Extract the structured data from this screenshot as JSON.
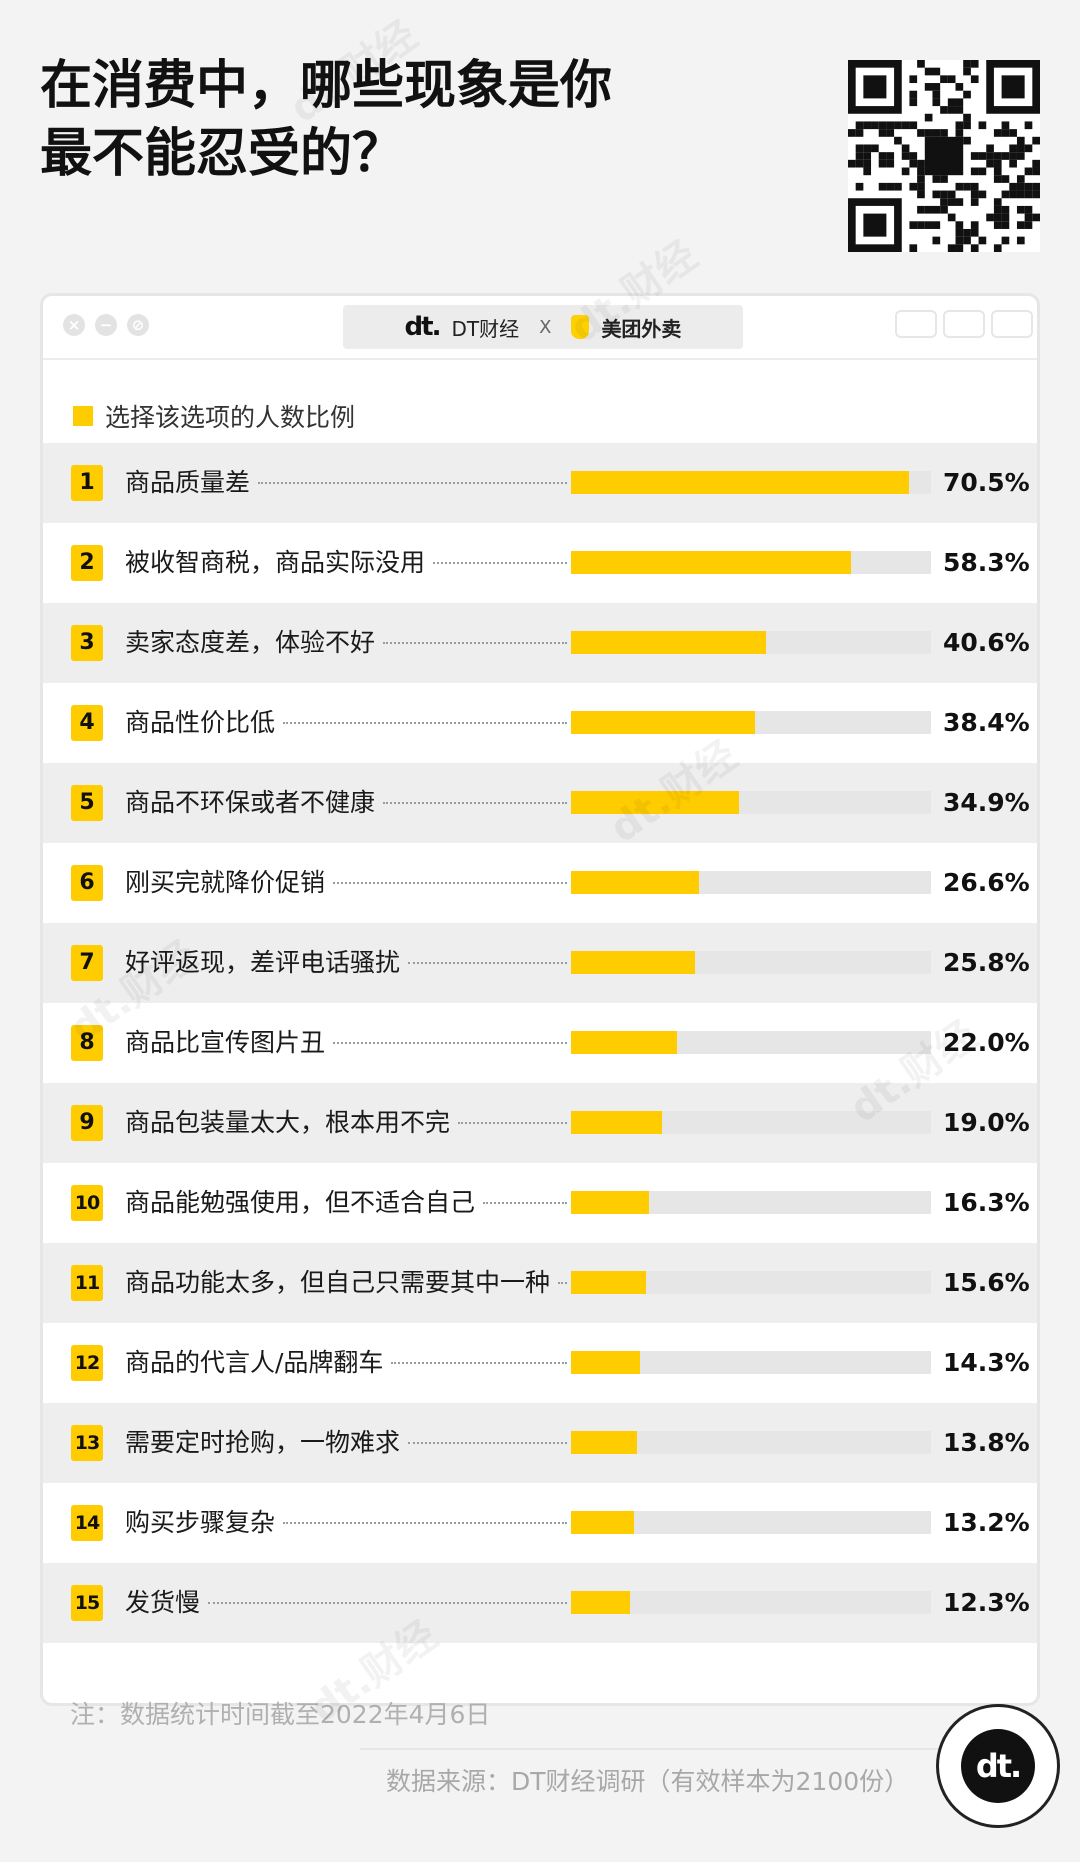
{
  "title": "在消费中，哪些现象是你\n最不能忍受的？",
  "header": {
    "brand_dt_logo": "dt.",
    "brand_dt": "DT财经",
    "brand_x": "X",
    "brand_meituan": "美团外卖"
  },
  "legend": "选择该选项的人数比例",
  "colors": {
    "accent": "#ffcc00",
    "track": "#e6e6e6",
    "row_shade": "#eeeeee"
  },
  "chart_data": {
    "type": "bar",
    "orientation": "horizontal",
    "series_name": "选择该选项的人数比例",
    "categories": [
      "商品质量差",
      "被收智商税，商品实际没用",
      "卖家态度差，体验不好",
      "商品性价比低",
      "商品不环保或者不健康",
      "刚买完就降价促销",
      "好评返现，差评电话骚扰",
      "商品比宣传图片丑",
      "商品包装量太大，根本用不完",
      "商品能勉强使用，但不适合自己",
      "商品功能太多，但自己只需要其中一种",
      "商品的代言人/品牌翻车",
      "需要定时抢购，一物难求",
      "购买步骤复杂",
      "发货慢"
    ],
    "ranks": [
      "1",
      "2",
      "3",
      "4",
      "5",
      "6",
      "7",
      "8",
      "9",
      "10",
      "11",
      "12",
      "13",
      "14",
      "15"
    ],
    "values": [
      70.5,
      58.3,
      40.6,
      38.4,
      34.9,
      26.6,
      25.8,
      22.0,
      19.0,
      16.3,
      15.6,
      14.3,
      13.8,
      13.2,
      12.3
    ],
    "value_labels": [
      "70.5%",
      "58.3%",
      "40.6%",
      "38.4%",
      "34.9%",
      "26.6%",
      "25.8%",
      "22.0%",
      "19.0%",
      "16.3%",
      "15.6%",
      "14.3%",
      "13.8%",
      "13.2%",
      "12.3%"
    ],
    "xlim": [
      0,
      75
    ],
    "legend_position": "top-left"
  },
  "note": "注：数据统计时间截至2022年4月6日",
  "source": "数据来源：DT财经调研（有效样本为2100份）",
  "badge_logo": "dt.",
  "watermark": "dt.财经"
}
